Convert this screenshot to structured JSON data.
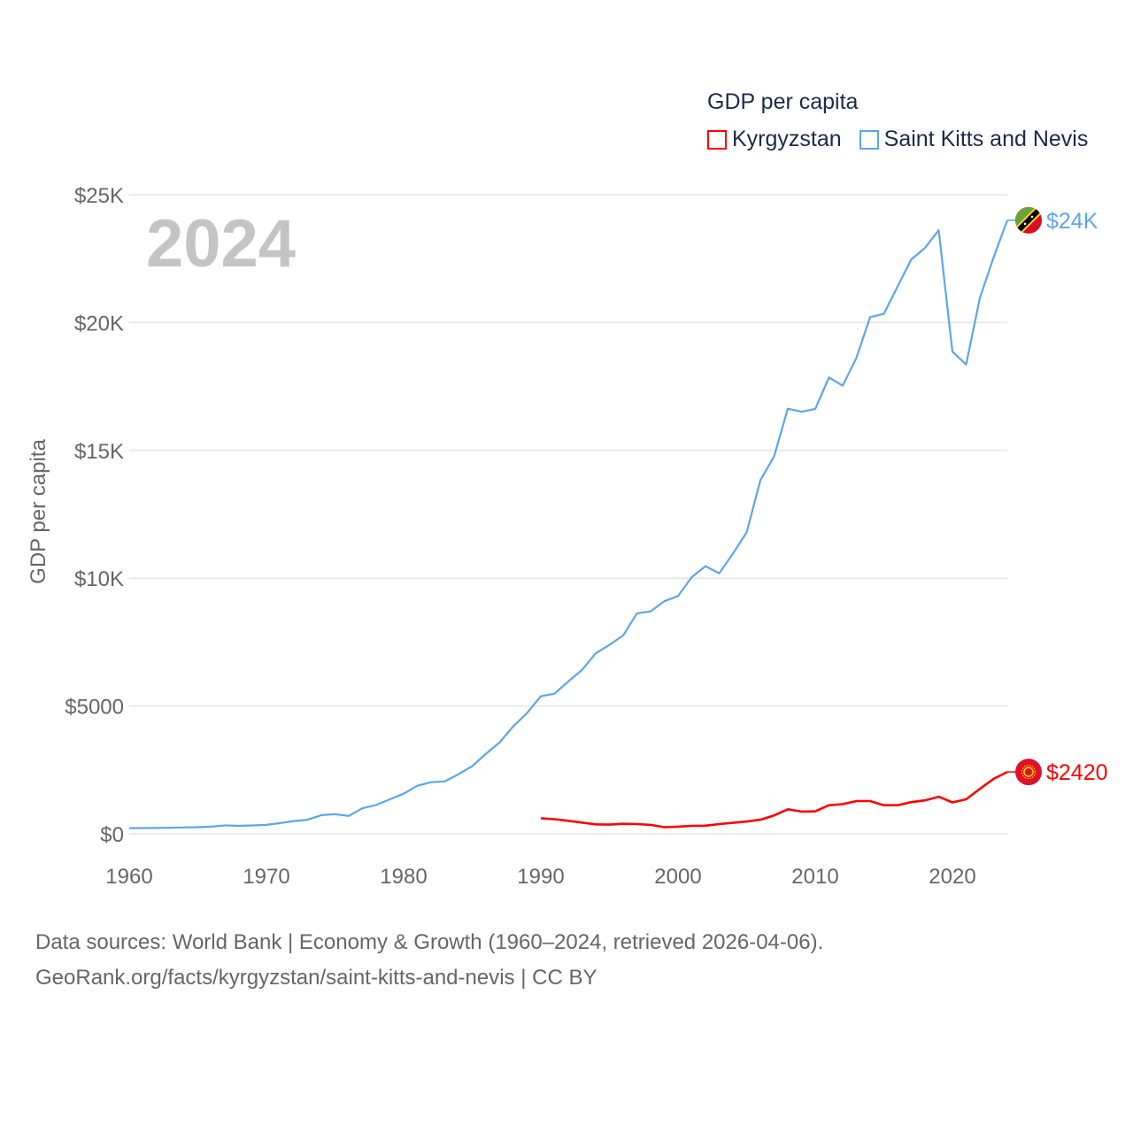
{
  "legend": {
    "title": "GDP per capita",
    "items": [
      {
        "label": "Kyrgyzstan",
        "color": "#ff0000"
      },
      {
        "label": "Saint Kitts and Nevis",
        "color": "#5da5ec"
      }
    ]
  },
  "year_label": "2024",
  "footer": {
    "line1": "Data sources: World Bank | Economy & Growth (1960–2024, retrieved 2026-04-06).",
    "line2": "GeoRank.org/facts/kyrgyzstan/saint-kitts-and-nevis | CC BY"
  },
  "chart_data": {
    "type": "line",
    "title": "GDP per capita",
    "xlabel": "",
    "ylabel": "GDP per capita",
    "xlim": [
      1960,
      2024
    ],
    "ylim": [
      0,
      25000
    ],
    "grid": true,
    "legend_position": "top-right",
    "x_ticks": [
      1960,
      1970,
      1980,
      1990,
      2000,
      2010,
      2020
    ],
    "y_ticks": [
      {
        "value": 0,
        "label": "$0"
      },
      {
        "value": 5000,
        "label": "$5000"
      },
      {
        "value": 10000,
        "label": "$10K"
      },
      {
        "value": 15000,
        "label": "$15K"
      },
      {
        "value": 20000,
        "label": "$20K"
      },
      {
        "value": 25000,
        "label": "$25K"
      }
    ],
    "series": [
      {
        "name": "Saint Kitts and Nevis",
        "color": "#5da5ec",
        "start_year": 1960,
        "end_label": "$24K",
        "flag": "saint-kitts-and-nevis-flag",
        "values": [
          220,
          225,
          230,
          240,
          250,
          260,
          280,
          330,
          310,
          330,
          350,
          420,
          500,
          550,
          730,
          770,
          700,
          1000,
          1130,
          1350,
          1570,
          1880,
          2020,
          2050,
          2330,
          2650,
          3130,
          3580,
          4210,
          4730,
          5380,
          5480,
          5960,
          6410,
          7060,
          7390,
          7760,
          8620,
          8700,
          9100,
          9300,
          10040,
          10470,
          10190,
          10960,
          11790,
          13830,
          14760,
          16630,
          16510,
          16620,
          17850,
          17530,
          18620,
          20210,
          20340,
          21410,
          22470,
          22920,
          23610,
          18860,
          18360,
          20960,
          22550,
          24000
        ]
      },
      {
        "name": "Kyrgyzstan",
        "color": "#ff0000",
        "start_year": 1990,
        "end_label": "$2420",
        "flag": "kyrgyzstan-flag",
        "values": [
          610,
          570,
          510,
          440,
          370,
          360,
          390,
          380,
          350,
          260,
          280,
          310,
          320,
          380,
          430,
          480,
          550,
          720,
          960,
          870,
          880,
          1120,
          1160,
          1280,
          1280,
          1120,
          1120,
          1240,
          1310,
          1450,
          1230,
          1350,
          1760,
          2150,
          2420
        ]
      }
    ]
  }
}
